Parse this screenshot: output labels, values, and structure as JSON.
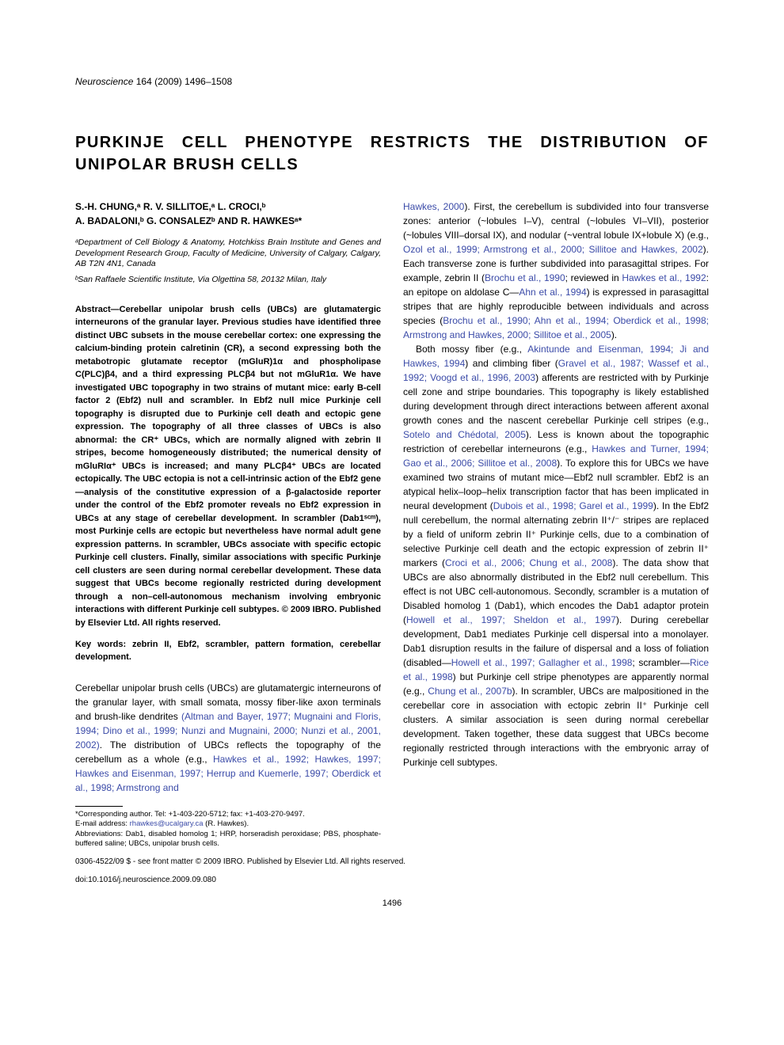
{
  "journal": {
    "name": "Neuroscience",
    "volume": "164",
    "year": "(2009)",
    "pages": "1496–1508"
  },
  "title": "PURKINJE CELL PHENOTYPE RESTRICTS THE DISTRIBUTION OF UNIPOLAR BRUSH CELLS",
  "authors_line1": "S.-H. CHUNG,ᵃ R. V. SILLITOE,ᵃ L. CROCI,ᵇ",
  "authors_line2": "A. BADALONI,ᵇ G. CONSALEZᵇ AND R. HAWKESᵃ*",
  "affil_a": "ᵃDepartment of Cell Biology & Anatomy, Hotchkiss Brain Institute and Genes and Development Research Group, Faculty of Medicine, University of Calgary, Calgary, AB T2N 4N1, Canada",
  "affil_b": "ᵇSan Raffaele Scientific Institute, Via Olgettina 58, 20132 Milan, Italy",
  "abstract": "Abstract—Cerebellar unipolar brush cells (UBCs) are glutamatergic interneurons of the granular layer. Previous studies have identified three distinct UBC subsets in the mouse cerebellar cortex: one expressing the calcium-binding protein calretinin (CR), a second expressing both the metabotropic glutamate receptor (mGluR)1α and phospholipase C(PLC)β4, and a third expressing PLCβ4 but not mGluR1α. We have investigated UBC topography in two strains of mutant mice: early B-cell factor 2 (Ebf2) null and scrambler. In Ebf2 null mice Purkinje cell topography is disrupted due to Purkinje cell death and ectopic gene expression. The topography of all three classes of UBCs is also abnormal: the CR⁺ UBCs, which are normally aligned with zebrin II stripes, become homogeneously distributed; the numerical density of mGluRIα⁺ UBCs is increased; and many PLCβ4⁺ UBCs are located ectopically. The UBC ectopia is not a cell-intrinsic action of the Ebf2 gene—analysis of the constitutive expression of a β-galactoside reporter under the control of the Ebf2 promoter reveals no Ebf2 expression in UBCs at any stage of cerebellar development. In scrambler (Dab1ˢᶜᵐ), most Purkinje cells are ectopic but nevertheless have normal adult gene expression patterns. In scrambler, UBCs associate with specific ectopic Purkinje cell clusters. Finally, similar associations with specific Purkinje cell clusters are seen during normal cerebellar development. These data suggest that UBCs become regionally restricted during development through a non–cell-autonomous mechanism involving embryonic interactions with different Purkinje cell subtypes. © 2009 IBRO. Published by Elsevier Ltd. All rights reserved.",
  "keywords": "Key words: zebrin II, Ebf2, scrambler, pattern formation, cerebellar development.",
  "intro_p1_a": "Cerebellar unipolar brush cells (UBCs) are glutamatergic interneurons of the granular layer, with small somata, mossy fiber-like axon terminals and brush-like dendrites ",
  "intro_refs1": "(Altman and Bayer, 1977; Mugnaini and Floris, 1994; Dino et al., 1999; Nunzi and Mugnaini, 2000; Nunzi et al., 2001, 2002)",
  "intro_p1_b": ". The distribution of UBCs reflects the topography of the cerebellum as a whole (e.g., ",
  "intro_refs2": "Hawkes et al., 1992; Hawkes, 1997; Hawkes and Eisenman, 1997; Herrup and Kuemerle, 1997; Oberdick et al., 1998; Armstrong and",
  "footnote_corr": "*Corresponding author. Tel: +1-403-220-5712; fax: +1-403-270-9497.",
  "footnote_email_label": "E-mail address: ",
  "footnote_email": "rhawkes@ucalgary.ca",
  "footnote_email_suffix": " (R. Hawkes).",
  "footnote_abbr": "Abbreviations: Dab1, disabled homolog 1; HRP, horseradish peroxidase; PBS, phosphate-buffered saline; UBCs, unipolar brush cells.",
  "col2_refs_cont": "Hawkes, 2000",
  "col2_p1_a": "). First, the cerebellum is subdivided into four transverse zones: anterior (~lobules I–V), central (~lobules VI–VII), posterior (~lobules VIII–dorsal IX), and nodular (~ventral lobule IX+lobule X) (e.g., ",
  "col2_refs3": "Ozol et al., 1999; Armstrong et al., 2000; Sillitoe and Hawkes, 2002",
  "col2_p1_b": "). Each transverse zone is further subdivided into parasagittal stripes. For example, zebrin II (",
  "col2_refs4": "Brochu et al., 1990",
  "col2_p1_c": "; reviewed in ",
  "col2_refs5": "Hawkes et al., 1992",
  "col2_p1_d": ": an epitope on aldolase C—",
  "col2_refs6": "Ahn et al., 1994",
  "col2_p1_e": ") is expressed in parasagittal stripes that are highly reproducible between individuals and across species (",
  "col2_refs7": "Brochu et al., 1990; Ahn et al., 1994; Oberdick et al., 1998; Armstrong and Hawkes, 2000; Sillitoe et al., 2005",
  "col2_p1_f": ").",
  "col2_p2_a": "Both mossy fiber (e.g., ",
  "col2_refs8": "Akintunde and Eisenman, 1994; Ji and Hawkes, 1994",
  "col2_p2_b": ") and climbing fiber (",
  "col2_refs9": "Gravel et al., 1987; Wassef et al., 1992; Voogd et al., 1996, 2003",
  "col2_p2_c": ") afferents are restricted with by Purkinje cell zone and stripe boundaries. This topography is likely established during development through direct interactions between afferent axonal growth cones and the nascent cerebellar Purkinje cell stripes (e.g., ",
  "col2_refs10": "Sotelo and Chédotal, 2005",
  "col2_p2_d": "). Less is known about the topographic restriction of cerebellar interneurons (e.g., ",
  "col2_refs11": "Hawkes and Turner, 1994; Gao et al., 2006; Sillitoe et al., 2008",
  "col2_p2_e": "). To explore this for UBCs we have examined two strains of mutant mice—Ebf2 null scrambler. Ebf2 is an atypical helix–loop–helix transcription factor that has been implicated in neural development (",
  "col2_refs12": "Dubois et al., 1998; Garel et al., 1999",
  "col2_p2_f": "). In the Ebf2 null cerebellum, the normal alternating zebrin II⁺/⁻ stripes are replaced by a field of uniform zebrin II⁺ Purkinje cells, due to a combination of selective Purkinje cell death and the ectopic expression of zebrin II⁺ markers (",
  "col2_refs13": "Croci et al., 2006; Chung et al., 2008",
  "col2_p2_g": "). The data show that UBCs are also abnormally distributed in the Ebf2 null cerebellum. This effect is not UBC cell-autonomous. Secondly, scrambler is a mutation of Disabled homolog 1 (Dab1), which encodes the Dab1 adaptor protein (",
  "col2_refs14": "Howell et al., 1997; Sheldon et al., 1997",
  "col2_p2_h": "). During cerebellar development, Dab1 mediates Purkinje cell dispersal into a monolayer. Dab1 disruption results in the failure of dispersal and a loss of foliation (disabled—",
  "col2_refs15": "Howell et al., 1997; Gallagher et al., 1998",
  "col2_p2_i": "; scrambler—",
  "col2_refs16": "Rice et al., 1998",
  "col2_p2_j": ") but Purkinje cell stripe phenotypes are apparently normal (e.g., ",
  "col2_refs17": "Chung et al., 2007b",
  "col2_p2_k": "). In scrambler, UBCs are malpositioned in the cerebellar core in association with ectopic zebrin II⁺ Purkinje cell clusters. A similar association is seen during normal cerebellar development. Taken together, these data suggest that UBCs become regionally restricted through interactions with the embryonic array of Purkinje cell subtypes.",
  "copyright": "0306-4522/09 $ - see front matter © 2009 IBRO. Published by Elsevier Ltd. All rights reserved.",
  "doi": "doi:10.1016/j.neuroscience.2009.09.080",
  "page_number": "1496",
  "colors": {
    "ref_link": "#3b4ba8",
    "text": "#000000",
    "bg": "#ffffff"
  }
}
